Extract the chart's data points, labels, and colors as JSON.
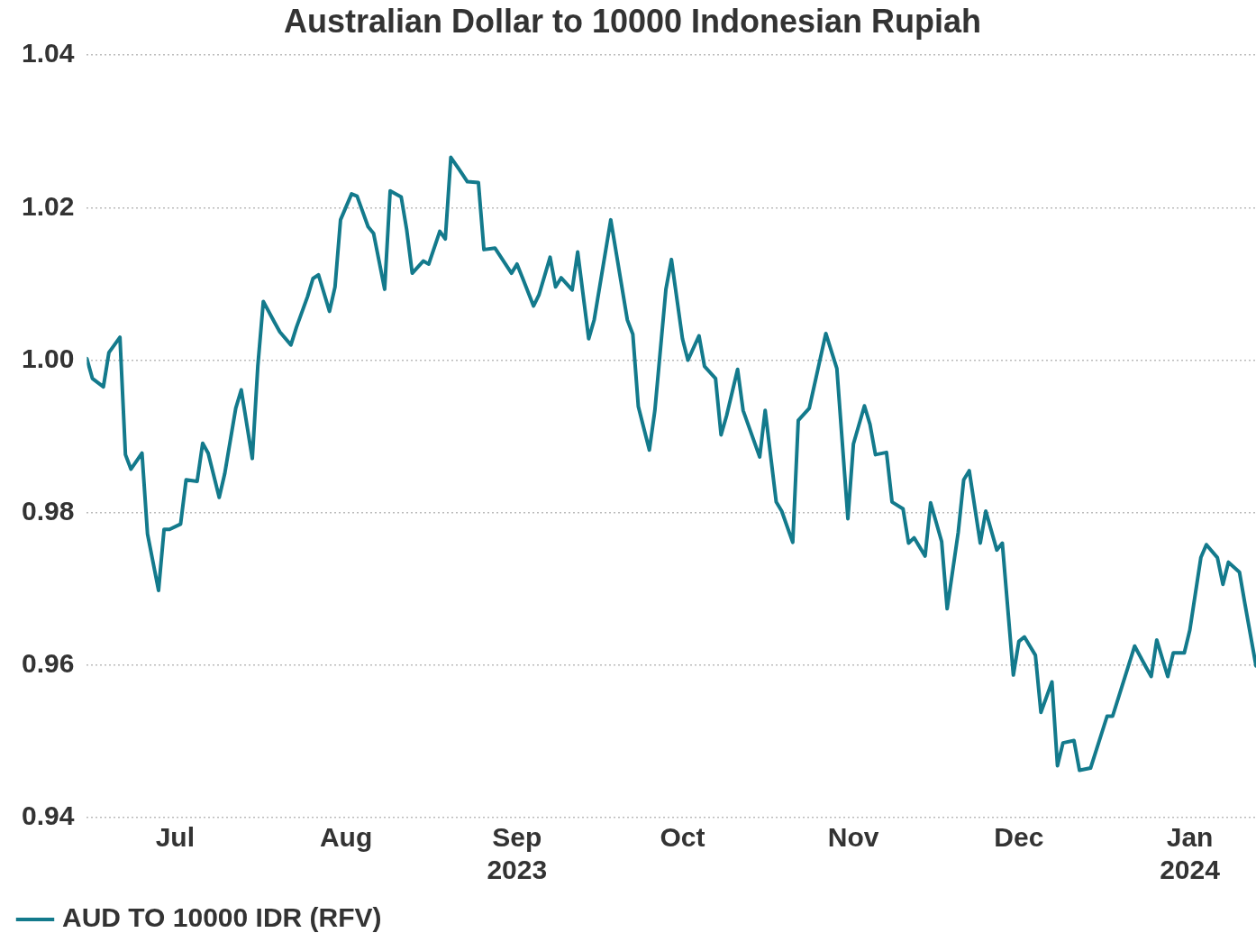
{
  "chart_data": {
    "type": "line",
    "title": "Australian Dollar to 10000 Indonesian Rupiah",
    "x": [
      "2023-06-15",
      "2023-06-16",
      "2023-06-18",
      "2023-06-19",
      "2023-06-21",
      "2023-06-22",
      "2023-06-23",
      "2023-06-25",
      "2023-06-26",
      "2023-06-28",
      "2023-06-29",
      "2023-06-30",
      "2023-07-02",
      "2023-07-03",
      "2023-07-05",
      "2023-07-06",
      "2023-07-07",
      "2023-07-09",
      "2023-07-10",
      "2023-07-12",
      "2023-07-13",
      "2023-07-15",
      "2023-07-16",
      "2023-07-17",
      "2023-07-19",
      "2023-07-20",
      "2023-07-22",
      "2023-07-23",
      "2023-07-25",
      "2023-07-26",
      "2023-07-27",
      "2023-07-29",
      "2023-07-30",
      "2023-07-31",
      "2023-08-02",
      "2023-08-03",
      "2023-08-05",
      "2023-08-06",
      "2023-08-08",
      "2023-08-09",
      "2023-08-11",
      "2023-08-12",
      "2023-08-13",
      "2023-08-15",
      "2023-08-16",
      "2023-08-18",
      "2023-08-19",
      "2023-08-20",
      "2023-08-22",
      "2023-08-23",
      "2023-08-25",
      "2023-08-26",
      "2023-08-28",
      "2023-08-31",
      "2023-09-01",
      "2023-09-02",
      "2023-09-04",
      "2023-09-05",
      "2023-09-07",
      "2023-09-08",
      "2023-09-09",
      "2023-09-11",
      "2023-09-12",
      "2023-09-14",
      "2023-09-15",
      "2023-09-18",
      "2023-09-21",
      "2023-09-22",
      "2023-09-23",
      "2023-09-25",
      "2023-09-26",
      "2023-09-28",
      "2023-09-29",
      "2023-10-01",
      "2023-10-02",
      "2023-10-04",
      "2023-10-05",
      "2023-10-07",
      "2023-10-08",
      "2023-10-09",
      "2023-10-11",
      "2023-10-12",
      "2023-10-15",
      "2023-10-16",
      "2023-10-18",
      "2023-10-19",
      "2023-10-21",
      "2023-10-22",
      "2023-10-24",
      "2023-10-27",
      "2023-10-29",
      "2023-10-31",
      "2023-11-01",
      "2023-11-03",
      "2023-11-04",
      "2023-11-05",
      "2023-11-07",
      "2023-11-08",
      "2023-11-10",
      "2023-11-11",
      "2023-11-12",
      "2023-11-14",
      "2023-11-15",
      "2023-11-17",
      "2023-11-18",
      "2023-11-20",
      "2023-11-21",
      "2023-11-22",
      "2023-11-24",
      "2023-11-25",
      "2023-11-27",
      "2023-11-28",
      "2023-11-30",
      "2023-12-01",
      "2023-12-02",
      "2023-12-04",
      "2023-12-05",
      "2023-12-07",
      "2023-12-08",
      "2023-12-09",
      "2023-12-11",
      "2023-12-12",
      "2023-12-14",
      "2023-12-17",
      "2023-12-18",
      "2023-12-22",
      "2023-12-24",
      "2023-12-25",
      "2023-12-26",
      "2023-12-28",
      "2023-12-29",
      "2023-12-31",
      "2024-01-01",
      "2024-01-03",
      "2024-01-04",
      "2024-01-06",
      "2024-01-07",
      "2024-01-08",
      "2024-01-10",
      "2024-01-11",
      "2024-01-13"
    ],
    "series": [
      {
        "name": "AUD TO 10000 IDR (RFV)",
        "color": "#137a8c",
        "values": [
          1.0002,
          0.9976,
          0.9965,
          1.001,
          1.003,
          0.9876,
          0.9857,
          0.9878,
          0.9772,
          0.9698,
          0.9778,
          0.9778,
          0.9785,
          0.9843,
          0.9841,
          0.9891,
          0.9878,
          0.982,
          0.9851,
          0.9937,
          0.9961,
          0.9871,
          0.9992,
          1.0077,
          1.005,
          1.0037,
          1.002,
          1.0043,
          1.0083,
          1.0107,
          1.0112,
          1.0064,
          1.0096,
          1.0184,
          1.0218,
          1.0215,
          1.0175,
          1.0166,
          1.0093,
          1.0222,
          1.0214,
          1.0171,
          1.0114,
          1.013,
          1.0126,
          1.0169,
          1.0159,
          1.0266,
          1.0245,
          1.0234,
          1.0233,
          1.0145,
          1.0147,
          1.0114,
          1.0126,
          1.0108,
          1.0071,
          1.0086,
          1.0135,
          1.0096,
          1.0108,
          1.0092,
          1.0142,
          1.0028,
          1.0053,
          1.0184,
          1.0053,
          1.0034,
          0.9939,
          0.9882,
          0.9934,
          1.0093,
          1.0132,
          1.0028,
          1.0,
          1.0032,
          0.9992,
          0.9976,
          0.9902,
          0.9927,
          0.9988,
          0.9934,
          0.9873,
          0.9934,
          0.9814,
          0.9802,
          0.9761,
          0.9921,
          0.9937,
          1.0035,
          0.9989,
          0.9792,
          0.989,
          0.994,
          0.9916,
          0.9876,
          0.9879,
          0.9814,
          0.9805,
          0.976,
          0.9767,
          0.9743,
          0.9813,
          0.9762,
          0.9674,
          0.9774,
          0.9843,
          0.9855,
          0.976,
          0.9802,
          0.9751,
          0.976,
          0.9587,
          0.9631,
          0.9637,
          0.9613,
          0.9538,
          0.9578,
          0.9468,
          0.9498,
          0.9501,
          0.9462,
          0.9465,
          0.9533,
          0.9533,
          0.9625,
          0.9598,
          0.9585,
          0.9633,
          0.9585,
          0.9616,
          0.9616,
          0.9646,
          0.9741,
          0.9758,
          0.9741,
          0.9706,
          0.9735,
          0.9722,
          0.968,
          0.9599
        ]
      }
    ],
    "xlim": [
      "2023-06-15",
      "2024-01-13"
    ],
    "xticks": [
      {
        "value": "2023-07-01",
        "label": "Jul"
      },
      {
        "value": "2023-08-01",
        "label": "Aug"
      },
      {
        "value": "2023-09-01",
        "label": "Sep\n2023"
      },
      {
        "value": "2023-10-01",
        "label": "Oct"
      },
      {
        "value": "2023-11-01",
        "label": "Nov"
      },
      {
        "value": "2023-12-01",
        "label": "Dec"
      },
      {
        "value": "2024-01-01",
        "label": "Jan\n2024"
      }
    ],
    "ylim": [
      0.94,
      1.04
    ],
    "yticks": [
      0.94,
      0.96,
      0.98,
      {
        "value": 1,
        "label": "1.00"
      },
      1.02,
      1.04
    ],
    "grid": "y",
    "legend": "bottom left",
    "marker": "none",
    "line_style": "solid"
  }
}
